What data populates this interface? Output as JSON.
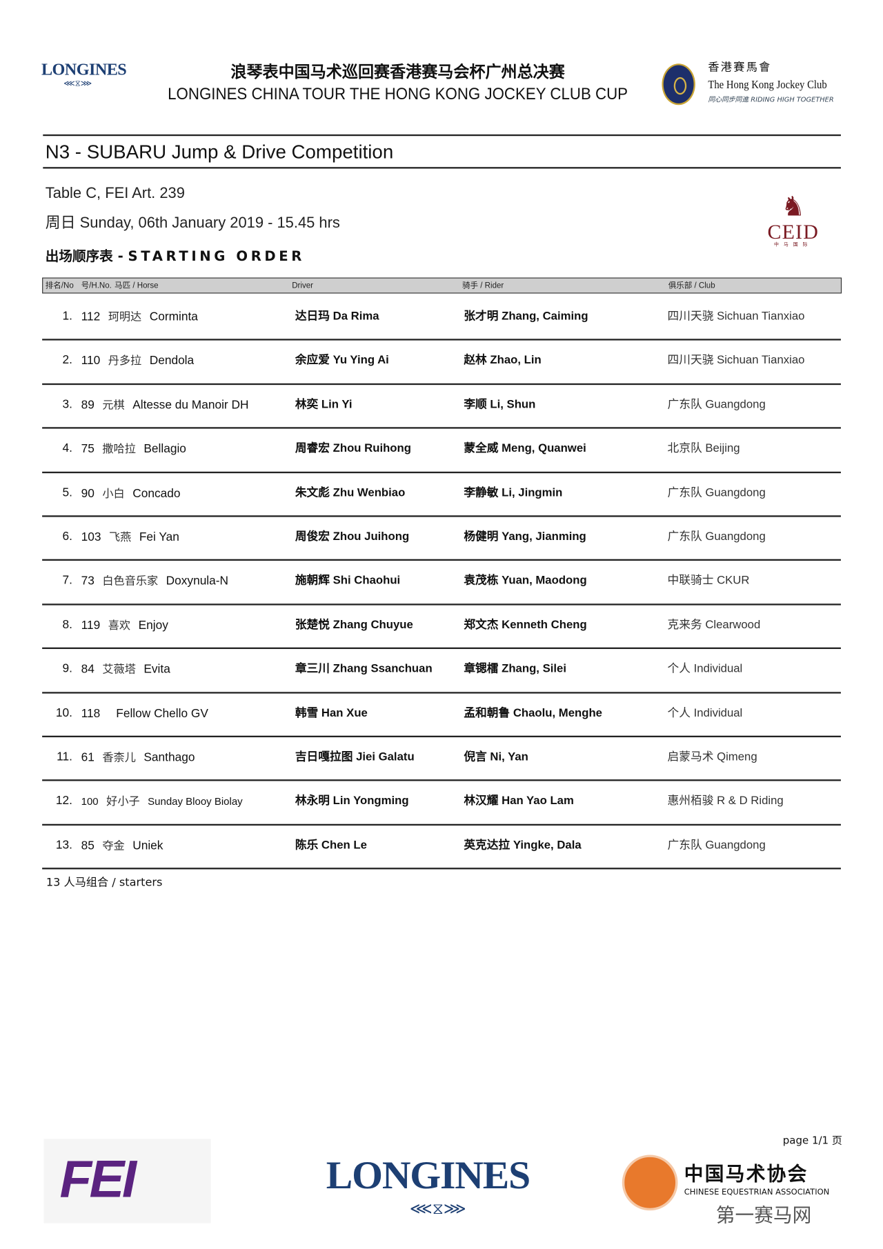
{
  "header": {
    "left_logo": "LONGINES",
    "title_cn": "浪琴表中国马术巡回赛香港赛马会杯广州总决赛",
    "title_en": "LONGINES CHINA TOUR THE HONG KONG JOCKEY CLUB CUP",
    "hkjc_cn": "香港賽馬會",
    "hkjc_en": "The Hong Kong Jockey Club",
    "hkjc_tagline": "同心同步同進 RIDING HIGH TOGETHER"
  },
  "competition": {
    "title": "N3 - SUBARU Jump & Drive Competition",
    "table": "Table C, FEI Art. 239",
    "date": "周日 Sunday, 06th January 2019 - 15.45 hrs",
    "order_cn": "出场顺序表 - ",
    "order_en": "STARTING ORDER",
    "ceid_logo": "CEID",
    "ceid_sub": "中马国际"
  },
  "table": {
    "columns": [
      "排名/No",
      "号/H.No.",
      "马匹 / Horse",
      "Driver",
      "骑手 / Rider",
      "俱乐部 / Club"
    ],
    "rows": [
      {
        "rank": "1.",
        "num": "112",
        "horse_cn": "珂明达",
        "horse": "Corminta",
        "driver": "达日玛 Da Rima",
        "rider": "张才明 Zhang, Caiming",
        "club": "四川天骁 Sichuan Tianxiao"
      },
      {
        "rank": "2.",
        "num": "110",
        "horse_cn": "丹多拉",
        "horse": "Dendola",
        "driver": "余应爱 Yu Ying Ai",
        "rider": "赵林 Zhao, Lin",
        "club": "四川天骁 Sichuan Tianxiao"
      },
      {
        "rank": "3.",
        "num": "89",
        "horse_cn": "元棋",
        "horse": "Altesse du Manoir DH",
        "driver": "林奕 Lin Yi",
        "rider": "李顺 Li, Shun",
        "club": "广东队  Guangdong"
      },
      {
        "rank": "4.",
        "num": "75",
        "horse_cn": "撒哈拉",
        "horse": "Bellagio",
        "driver": "周睿宏 Zhou Ruihong",
        "rider": "蒙全威 Meng, Quanwei",
        "club": "北京队 Beijing"
      },
      {
        "rank": "5.",
        "num": "90",
        "horse_cn": "小白",
        "horse": "Concado",
        "driver": "朱文彪 Zhu Wenbiao",
        "rider": "李静敏 Li, Jingmin",
        "club": "广东队  Guangdong"
      },
      {
        "rank": "6.",
        "num": "103",
        "horse_cn": "飞燕",
        "horse": "Fei Yan",
        "driver": "周俊宏 Zhou Juihong",
        "rider": "杨健明 Yang, Jianming",
        "club": "广东队  Guangdong"
      },
      {
        "rank": "7.",
        "num": "73",
        "horse_cn": "白色音乐家",
        "horse": "Doxynula-N",
        "driver": "施朝辉 Shi Chaohui",
        "rider": "袁茂栋 Yuan, Maodong",
        "club": "中联骑士 CKUR"
      },
      {
        "rank": "8.",
        "num": "119",
        "horse_cn": "喜欢",
        "horse": "Enjoy",
        "driver": "张楚悦 Zhang Chuyue",
        "rider": "郑文杰 Kenneth Cheng",
        "club": "克来务 Clearwood"
      },
      {
        "rank": "9.",
        "num": "84",
        "horse_cn": "艾薇塔",
        "horse": "Evita",
        "driver": "章三川 Zhang Ssanchuan",
        "rider": "章锶檑 Zhang, Silei",
        "club": "个人 Individual"
      },
      {
        "rank": "10.",
        "num": "118",
        "horse_cn": "",
        "horse": "Fellow Chello GV",
        "driver": "韩雪 Han Xue",
        "rider": "孟和朝鲁 Chaolu, Menghe",
        "club": "个人 Individual"
      },
      {
        "rank": "11.",
        "num": "61",
        "horse_cn": "香柰儿",
        "horse": "Santhago",
        "driver": "吉日嘎拉图 Jiei Galatu",
        "rider": "倪言 Ni, Yan",
        "club": "启蒙马术 Qimeng"
      },
      {
        "rank": "12.",
        "num": "100",
        "horse_cn": "好小子",
        "horse": "Sunday Blooy Biolay",
        "driver": "林永明 Lin Yongming",
        "rider": "林汉耀 Han Yao Lam",
        "club": "惠州栢骏 R & D Riding"
      },
      {
        "rank": "13.",
        "num": "85",
        "horse_cn": "夺金",
        "horse": "Uniek",
        "driver": "陈乐 Chen Le",
        "rider": "英克达拉 Yingke, Dala",
        "club": "广东队  Guangdong"
      }
    ]
  },
  "footer": {
    "starters": "13 人马组合 / starters",
    "page": "page 1/1 页",
    "fei_logo": "FEI",
    "longines_logo": "LONGINES",
    "cea_cn": "中国马术协会",
    "cea_en": "CHINESE EQUESTRIAN ASSOCIATION",
    "watermark": "第一赛马网"
  }
}
